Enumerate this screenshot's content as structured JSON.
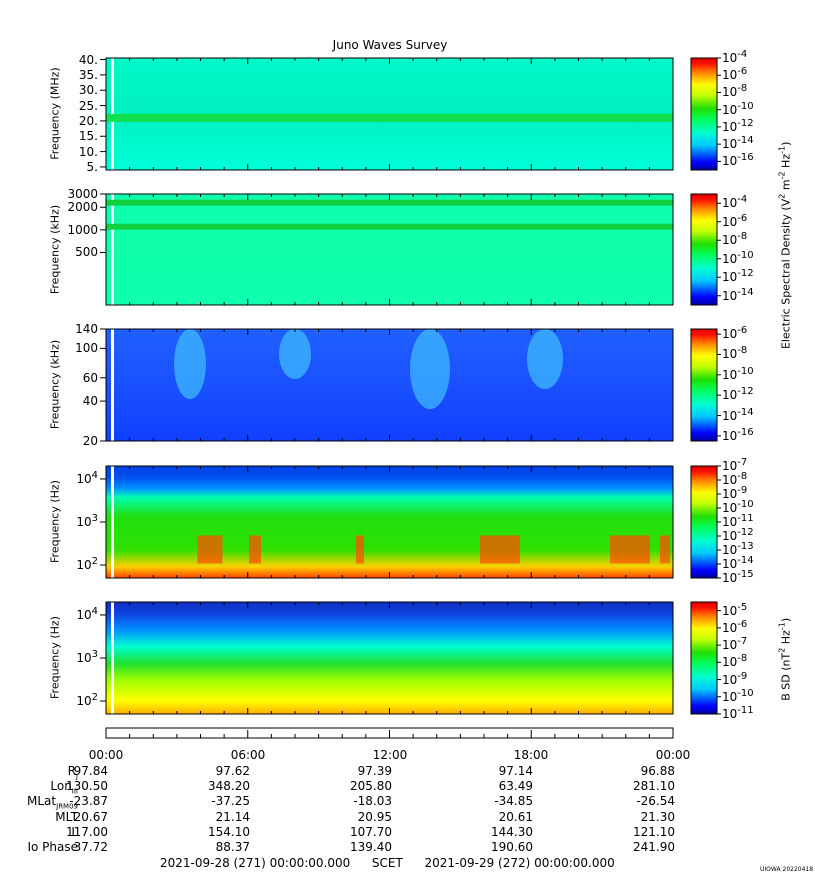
{
  "chart_data": {
    "type": "heatmap",
    "title": "Juno Waves Survey",
    "x_axis": {
      "start": "2021-09-28 (271) 00:00:00.000",
      "end": "2021-09-29 (272) 00:00:00.000",
      "label": "SCET",
      "tick_labels": [
        "00:00",
        "06:00",
        "12:00",
        "18:00",
        "00:00"
      ]
    },
    "panels": [
      {
        "id": "p1",
        "ylabel": "Frequency (MHz)",
        "ylim": [
          4,
          40.5
        ],
        "yscale": "linear",
        "yticks": [
          {
            "v": 40,
            "label": "40."
          },
          {
            "v": 35,
            "label": "35."
          },
          {
            "v": 30,
            "label": "30."
          },
          {
            "v": 25,
            "label": "25."
          },
          {
            "v": 20,
            "label": "20."
          },
          {
            "v": 15,
            "label": "15."
          },
          {
            "v": 10,
            "label": "10."
          },
          {
            "v": 5,
            "label": "5."
          }
        ],
        "colorbar": [
          {
            "e": "-4"
          },
          {
            "e": "-6"
          },
          {
            "e": "-8"
          },
          {
            "e": "-10"
          },
          {
            "e": "-12"
          },
          {
            "e": "-14"
          },
          {
            "e": "-16"
          }
        ],
        "colorbar_range": [
          -17,
          -4
        ]
      },
      {
        "id": "p2",
        "ylabel": "Frequency (kHz)",
        "ylim": [
          100,
          3000
        ],
        "yscale": "log",
        "yticks": [
          {
            "v": 3000,
            "label": "3000"
          },
          {
            "v": 2000,
            "label": "2000"
          },
          {
            "v": 1000,
            "label": "1000"
          },
          {
            "v": 500,
            "label": "500"
          }
        ],
        "colorbar": [
          {
            "e": "-4"
          },
          {
            "e": "-6"
          },
          {
            "e": "-8"
          },
          {
            "e": "-10"
          },
          {
            "e": "-12"
          },
          {
            "e": "-14"
          }
        ],
        "colorbar_range": [
          -15,
          -3
        ]
      },
      {
        "id": "p3",
        "ylabel": "Frequency (kHz)",
        "ylim": [
          20,
          140
        ],
        "yscale": "log",
        "yticks": [
          {
            "v": 140,
            "label": "140"
          },
          {
            "v": 100,
            "label": "100"
          },
          {
            "v": 60,
            "label": "60"
          },
          {
            "v": 40,
            "label": "40"
          },
          {
            "v": 20,
            "label": "20"
          }
        ],
        "colorbar": [
          {
            "e": "-6"
          },
          {
            "e": "-8"
          },
          {
            "e": "-10"
          },
          {
            "e": "-12"
          },
          {
            "e": "-14"
          },
          {
            "e": "-16"
          }
        ],
        "colorbar_range": [
          -16.5,
          -5.5
        ]
      },
      {
        "id": "p4",
        "ylabel": "Frequency (Hz)",
        "ylim": [
          50,
          20000
        ],
        "yscale": "log",
        "yticks": [
          {
            "v": 10000,
            "label": "10",
            "e": "4"
          },
          {
            "v": 1000,
            "label": "10",
            "e": "3"
          },
          {
            "v": 100,
            "label": "10",
            "e": "2"
          }
        ],
        "colorbar": [
          {
            "e": "-7"
          },
          {
            "e": "-8"
          },
          {
            "e": "-9"
          },
          {
            "e": "-10"
          },
          {
            "e": "-11"
          },
          {
            "e": "-12"
          },
          {
            "e": "-13"
          },
          {
            "e": "-14"
          },
          {
            "e": "-15"
          }
        ],
        "colorbar_range": [
          -15,
          -7
        ]
      },
      {
        "id": "p5",
        "ylabel": "Frequency (Hz)",
        "ylim": [
          50,
          20000
        ],
        "yscale": "log",
        "yticks": [
          {
            "v": 10000,
            "label": "10",
            "e": "4"
          },
          {
            "v": 1000,
            "label": "10",
            "e": "3"
          },
          {
            "v": 100,
            "label": "10",
            "e": "2"
          }
        ],
        "colorbar": [
          {
            "e": "-5"
          },
          {
            "e": "-6"
          },
          {
            "e": "-7"
          },
          {
            "e": "-8"
          },
          {
            "e": "-9"
          },
          {
            "e": "-10"
          },
          {
            "e": "-11"
          }
        ],
        "colorbar_range": [
          -11,
          -4.5
        ]
      }
    ],
    "colorbar_label_electric": "Electric Spectral Density (V",
    "colorbar_label_electric_sup1": "2",
    "colorbar_label_electric_mid": " m",
    "colorbar_label_electric_sup2": "-2",
    "colorbar_label_electric_hz": " Hz",
    "colorbar_label_electric_sup3": "-1",
    "colorbar_label_magnetic": "B SD (nT",
    "colorbar_label_magnetic_sup1": "2",
    "colorbar_label_magnetic_hz": " Hz",
    "colorbar_label_magnetic_sup2": "-1",
    "ephemeris": {
      "rows": [
        {
          "label": "R",
          "sub": "J",
          "values": [
            "97.84",
            "97.62",
            "97.39",
            "97.14",
            "96.88"
          ]
        },
        {
          "label": "Lon",
          "sub": "III",
          "values": [
            "130.50",
            "348.20",
            "205.80",
            "63.49",
            "281.10"
          ]
        },
        {
          "label": "MLat",
          "sub": "JRM09",
          "values": [
            "-23.87",
            "-37.25",
            "-18.03",
            "-34.85",
            "-26.54"
          ]
        },
        {
          "label": "MLT",
          "sub": "",
          "values": [
            "20.67",
            "21.14",
            "20.95",
            "20.61",
            "21.30"
          ]
        },
        {
          "label": "L",
          "sub": "",
          "values": [
            "117.00",
            "154.10",
            "107.70",
            "144.30",
            "121.10"
          ]
        },
        {
          "label": "Io Phase",
          "sub": "",
          "values": [
            "37.72",
            "88.37",
            "139.40",
            "190.60",
            "241.90"
          ]
        }
      ]
    }
  },
  "footer": {
    "start": "2021-09-28 (271) 00:00:00.000",
    "scet": "SCET",
    "end": "2021-09-29 (272) 00:00:00.000"
  },
  "stamp": "UIOWA 20220418"
}
